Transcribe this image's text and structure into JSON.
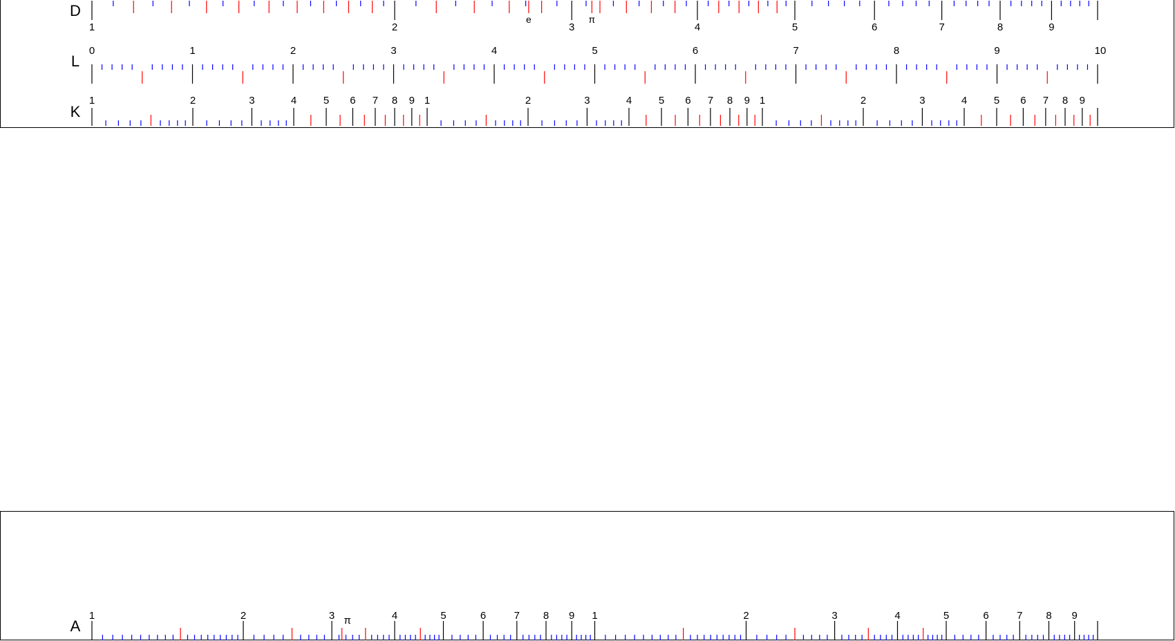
{
  "colors": {
    "major": "#000000",
    "mid": "#ff0000",
    "minor": "#0000ff",
    "frame": "#000000",
    "background": "#ffffff"
  },
  "scales": {
    "D": {
      "name": "D",
      "type": "log",
      "cycles": 1,
      "labels": [
        "1",
        "2",
        "3",
        "4",
        "5",
        "6",
        "7",
        "8",
        "9"
      ],
      "constants": [
        {
          "value": 2.71828,
          "label": "e"
        },
        {
          "value": 3.14159,
          "label": "π"
        }
      ]
    },
    "L": {
      "name": "L",
      "type": "linear",
      "labels": [
        "0",
        "1",
        "2",
        "3",
        "4",
        "5",
        "6",
        "7",
        "8",
        "9",
        "10"
      ]
    },
    "K": {
      "name": "K",
      "type": "log",
      "cycles": 3,
      "labels": [
        "1",
        "2",
        "3",
        "4",
        "5",
        "6",
        "7",
        "8",
        "9"
      ]
    },
    "A": {
      "name": "A",
      "type": "log",
      "cycles": 2,
      "labels": [
        "1",
        "2",
        "3",
        "4",
        "5",
        "6",
        "7",
        "8",
        "9"
      ],
      "constants": [
        {
          "value": 3.14159,
          "label": "π"
        }
      ]
    }
  }
}
